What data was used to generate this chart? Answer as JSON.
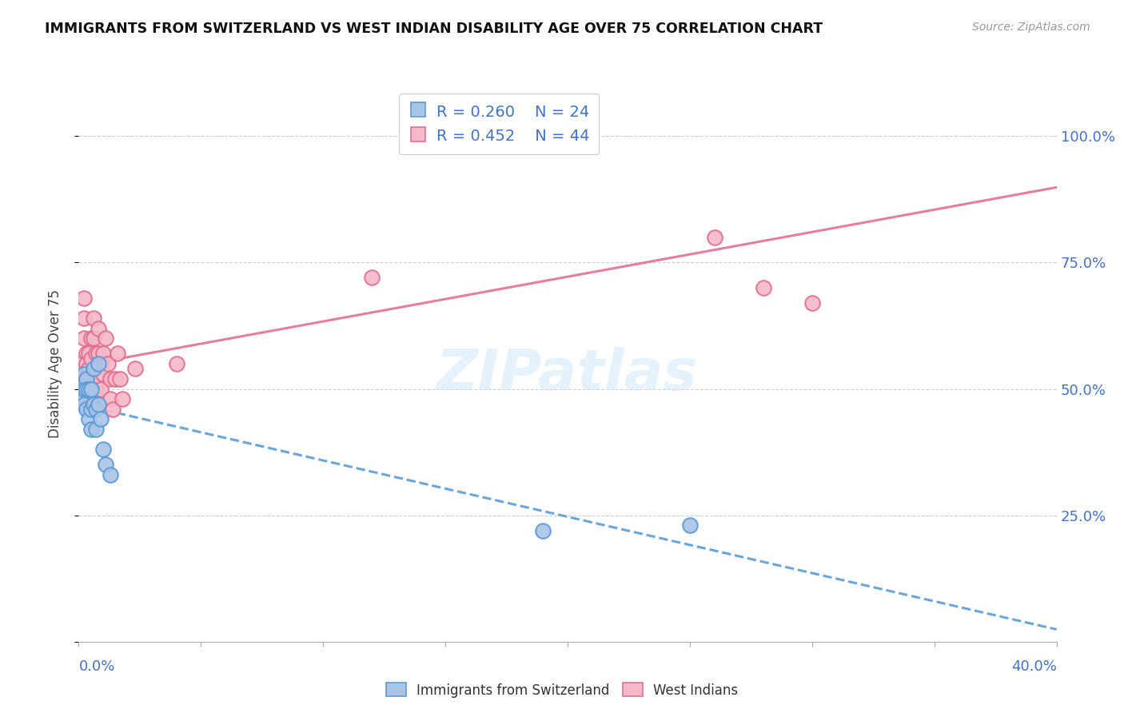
{
  "title": "IMMIGRANTS FROM SWITZERLAND VS WEST INDIAN DISABILITY AGE OVER 75 CORRELATION CHART",
  "source": "Source: ZipAtlas.com",
  "legend_label1": "Immigrants from Switzerland",
  "legend_label2": "West Indians",
  "r1": "0.260",
  "n1": "24",
  "r2": "0.452",
  "n2": "44",
  "color_swiss_fill": "#aac4e8",
  "color_swiss_edge": "#5b9bd5",
  "color_west_fill": "#f5b8c8",
  "color_west_edge": "#e07090",
  "color_line_swiss": "#5b9bd5",
  "color_line_west": "#e07090",
  "color_text_blue": "#4472c4",
  "color_grid": "#d0d0d0",
  "swiss_x": [
    0.001,
    0.002,
    0.002,
    0.002,
    0.003,
    0.003,
    0.003,
    0.004,
    0.004,
    0.005,
    0.005,
    0.005,
    0.006,
    0.006,
    0.007,
    0.007,
    0.008,
    0.008,
    0.009,
    0.01,
    0.011,
    0.013,
    0.19,
    0.25
  ],
  "swiss_y": [
    0.49,
    0.53,
    0.5,
    0.47,
    0.52,
    0.5,
    0.46,
    0.5,
    0.44,
    0.5,
    0.46,
    0.42,
    0.54,
    0.47,
    0.46,
    0.42,
    0.55,
    0.47,
    0.44,
    0.38,
    0.35,
    0.33,
    0.22,
    0.23
  ],
  "west_x": [
    0.001,
    0.001,
    0.002,
    0.002,
    0.002,
    0.003,
    0.003,
    0.003,
    0.003,
    0.004,
    0.004,
    0.004,
    0.005,
    0.005,
    0.005,
    0.005,
    0.006,
    0.006,
    0.007,
    0.007,
    0.007,
    0.008,
    0.008,
    0.008,
    0.009,
    0.009,
    0.01,
    0.01,
    0.011,
    0.012,
    0.013,
    0.013,
    0.014,
    0.015,
    0.016,
    0.017,
    0.018,
    0.023,
    0.04,
    0.12,
    0.2,
    0.26,
    0.28,
    0.3
  ],
  "west_y": [
    0.55,
    0.52,
    0.68,
    0.64,
    0.6,
    0.57,
    0.55,
    0.52,
    0.5,
    0.57,
    0.54,
    0.5,
    0.6,
    0.56,
    0.52,
    0.49,
    0.64,
    0.6,
    0.57,
    0.53,
    0.5,
    0.62,
    0.57,
    0.52,
    0.55,
    0.5,
    0.57,
    0.53,
    0.6,
    0.55,
    0.52,
    0.48,
    0.46,
    0.52,
    0.57,
    0.52,
    0.48,
    0.54,
    0.55,
    0.72,
    1.02,
    0.8,
    0.7,
    0.67
  ],
  "xmin": 0.0,
  "xmax": 0.4,
  "ymin": 0.0,
  "ymax": 1.1,
  "yticks": [
    0.0,
    0.25,
    0.5,
    0.75,
    1.0
  ],
  "ytick_labels": [
    "",
    "25.0%",
    "50.0%",
    "75.0%",
    "100.0%"
  ],
  "xtick_count": 9
}
